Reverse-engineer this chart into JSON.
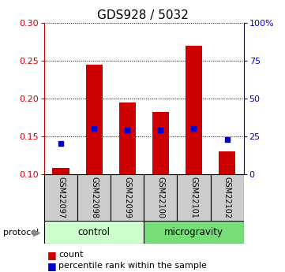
{
  "title": "GDS928 / 5032",
  "samples": [
    "GSM22097",
    "GSM22098",
    "GSM22099",
    "GSM22100",
    "GSM22101",
    "GSM22102"
  ],
  "bar_heights": [
    0.108,
    0.245,
    0.195,
    0.182,
    0.27,
    0.13
  ],
  "blue_dots": [
    0.141,
    0.16,
    0.158,
    0.158,
    0.16,
    0.146
  ],
  "bar_bottom": 0.1,
  "ylim": [
    0.1,
    0.3
  ],
  "right_ylim": [
    0,
    100
  ],
  "right_yticks": [
    0,
    25,
    50,
    75,
    100
  ],
  "right_yticklabels": [
    "0",
    "25",
    "50",
    "75",
    "100%"
  ],
  "yticks": [
    0.1,
    0.15,
    0.2,
    0.25,
    0.3
  ],
  "left_color": "#cc0000",
  "right_color": "#0000cc",
  "bar_color": "#cc0000",
  "dot_color": "#0000cc",
  "groups": [
    {
      "label": "control",
      "start": 0,
      "end": 3,
      "color": "#ccffcc"
    },
    {
      "label": "microgravity",
      "start": 3,
      "end": 6,
      "color": "#77dd77"
    }
  ],
  "protocol_label": "protocol",
  "legend_count": "count",
  "legend_pct": "percentile rank within the sample",
  "sample_box_color": "#cccccc",
  "title_fontsize": 11,
  "tick_fontsize": 8,
  "label_fontsize": 8.5
}
